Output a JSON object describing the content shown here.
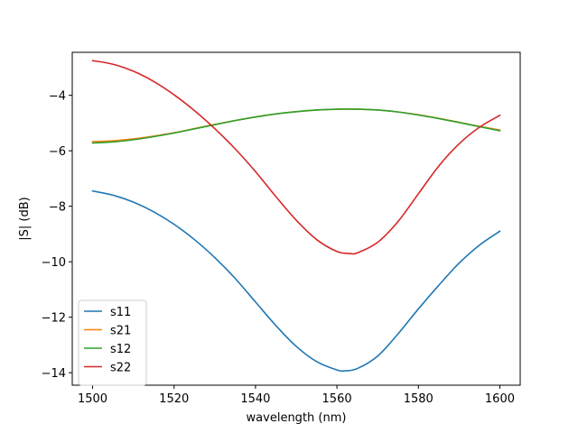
{
  "chart_data": {
    "type": "line",
    "title": "",
    "xlabel": "wavelength (nm)",
    "ylabel": "|S| (dB)",
    "xlim": [
      1495,
      1605
    ],
    "ylim": [
      -14.45,
      -2.45
    ],
    "xticks": [
      1500,
      1520,
      1540,
      1560,
      1580,
      1600
    ],
    "yticks": [
      -14,
      -12,
      -10,
      -8,
      -6,
      -4
    ],
    "grid": false,
    "legend_position": "lower-left",
    "series": [
      {
        "name": "s11",
        "color": "#1f77b4",
        "x": [
          1500,
          1505,
          1510,
          1515,
          1520,
          1525,
          1530,
          1535,
          1540,
          1545,
          1550,
          1555,
          1560,
          1562,
          1565,
          1570,
          1575,
          1580,
          1585,
          1590,
          1595,
          1600
        ],
        "values": [
          -7.45,
          -7.6,
          -7.85,
          -8.2,
          -8.65,
          -9.2,
          -9.85,
          -10.6,
          -11.45,
          -12.3,
          -13.05,
          -13.6,
          -13.9,
          -13.93,
          -13.85,
          -13.4,
          -12.6,
          -11.7,
          -10.85,
          -10.05,
          -9.4,
          -8.9
        ]
      },
      {
        "name": "s21",
        "color": "#ff7f0e",
        "x": [
          1500,
          1505,
          1510,
          1515,
          1520,
          1525,
          1530,
          1535,
          1540,
          1545,
          1550,
          1555,
          1560,
          1565,
          1570,
          1575,
          1580,
          1585,
          1590,
          1595,
          1600
        ],
        "values": [
          -5.67,
          -5.64,
          -5.57,
          -5.47,
          -5.35,
          -5.2,
          -5.05,
          -4.91,
          -4.78,
          -4.67,
          -4.59,
          -4.53,
          -4.5,
          -4.5,
          -4.53,
          -4.6,
          -4.7,
          -4.83,
          -4.97,
          -5.12,
          -5.25
        ]
      },
      {
        "name": "s12",
        "color": "#2ca02c",
        "x": [
          1500,
          1505,
          1510,
          1515,
          1520,
          1525,
          1530,
          1535,
          1540,
          1545,
          1550,
          1555,
          1560,
          1565,
          1570,
          1575,
          1580,
          1585,
          1590,
          1595,
          1600
        ],
        "values": [
          -5.72,
          -5.68,
          -5.6,
          -5.49,
          -5.36,
          -5.21,
          -5.06,
          -4.91,
          -4.78,
          -4.67,
          -4.59,
          -4.53,
          -4.5,
          -4.5,
          -4.53,
          -4.6,
          -4.71,
          -4.84,
          -4.98,
          -5.13,
          -5.28
        ]
      },
      {
        "name": "s22",
        "color": "#d62728",
        "x": [
          1500,
          1505,
          1510,
          1515,
          1520,
          1525,
          1530,
          1535,
          1540,
          1545,
          1550,
          1555,
          1560,
          1563,
          1565,
          1570,
          1575,
          1580,
          1585,
          1590,
          1595,
          1600
        ],
        "values": [
          -2.75,
          -2.88,
          -3.13,
          -3.5,
          -3.98,
          -4.55,
          -5.2,
          -5.93,
          -6.75,
          -7.65,
          -8.5,
          -9.2,
          -9.63,
          -9.7,
          -9.68,
          -9.3,
          -8.55,
          -7.55,
          -6.55,
          -5.75,
          -5.15,
          -4.72
        ]
      }
    ]
  }
}
